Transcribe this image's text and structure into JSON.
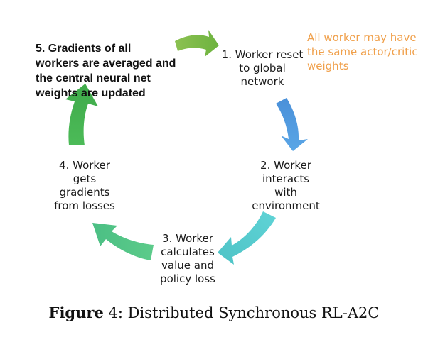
{
  "steps": [
    {
      "lines": [
        "1. Worker reset",
        "to global",
        "network"
      ]
    },
    {
      "lines": [
        "2. Worker",
        "interacts",
        "with",
        "environment"
      ]
    },
    {
      "lines": [
        "3. Worker",
        "calculates",
        "value and",
        "policy loss"
      ]
    },
    {
      "lines": [
        "4. Worker",
        "gets",
        "gradients",
        "from losses"
      ]
    },
    {
      "lines": [
        "5. Gradients of all",
        "workers are averaged and",
        "the central neural net",
        "weights are updated"
      ]
    }
  ],
  "note": {
    "lines": [
      "All worker may have",
      "the same actor/critic",
      "weights"
    ],
    "color": "#f0a04b"
  },
  "caption": {
    "label": "Figure",
    "number": "4",
    "text": ": Distributed Synchronous RL-A2C"
  },
  "arrow_colors": [
    "#7ab648",
    "#4f94d4",
    "#5bc9c9",
    "#4cc389",
    "#48b848"
  ]
}
